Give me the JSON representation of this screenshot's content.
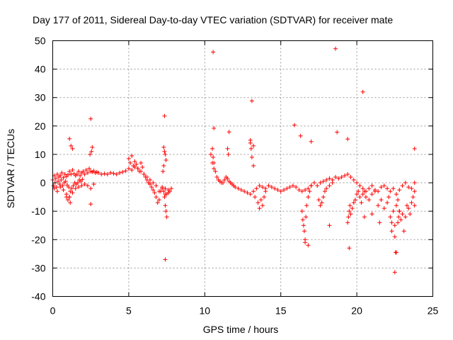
{
  "chart_data": {
    "type": "scatter",
    "title": "Day 177 of 2011, Sidereal Day-to-day VTEC variation (SDTVAR) for receiver mate",
    "xlabel": "GPS time / hours",
    "ylabel": "SDTVAR / TECUs",
    "xlim": [
      0,
      25
    ],
    "ylim": [
      -40,
      50
    ],
    "xticks": [
      0,
      5,
      10,
      15,
      20,
      25
    ],
    "yticks": [
      -40,
      -30,
      -20,
      -10,
      0,
      10,
      20,
      30,
      40,
      50
    ],
    "grid": true,
    "marker": "+",
    "series": [
      {
        "name": "SDTVAR",
        "color": "#ff0000",
        "x": [
          0.0,
          0.1,
          0.2,
          0.3,
          0.4,
          0.5,
          0.6,
          0.7,
          0.8,
          0.9,
          1.0,
          1.1,
          1.2,
          1.3,
          1.4,
          1.5,
          1.6,
          1.7,
          1.8,
          1.9,
          2.0,
          2.1,
          2.2,
          2.3,
          2.4,
          2.5,
          2.6,
          2.7,
          2.8,
          2.9,
          3.0,
          3.2,
          3.4,
          3.6,
          3.8,
          4.0,
          4.2,
          4.4,
          4.6,
          4.8,
          5.0,
          5.2,
          5.4,
          5.6,
          5.8,
          6.0,
          6.2,
          6.4,
          6.6,
          6.8,
          7.0,
          7.2,
          7.4,
          7.6,
          7.8,
          0.05,
          0.15,
          0.25,
          0.35,
          0.45,
          0.55,
          0.65,
          0.75,
          0.85,
          0.95,
          1.05,
          1.15,
          1.25,
          1.35,
          1.45,
          1.55,
          1.65,
          1.75,
          1.85,
          1.95,
          0.1,
          0.3,
          0.5,
          0.7,
          0.9,
          1.1,
          1.3,
          1.5,
          1.7,
          1.9,
          2.1,
          2.3,
          2.5,
          2.7,
          1.1,
          1.2,
          1.3,
          2.5,
          2.6,
          2.55,
          2.45,
          1.15,
          0.9,
          1.0,
          5.0,
          5.1,
          5.2,
          5.3,
          5.4,
          5.5,
          5.6,
          5.7,
          5.8,
          5.9,
          6.0,
          6.1,
          6.2,
          6.3,
          6.4,
          6.5,
          6.6,
          6.7,
          6.8,
          6.9,
          7.0,
          7.1,
          7.2,
          7.3,
          7.4,
          7.5,
          7.6,
          7.7,
          7.3,
          7.35,
          7.4,
          7.45,
          7.3,
          7.25,
          7.35,
          7.4,
          7.45,
          7.5,
          10.4,
          10.5,
          10.6,
          10.7,
          10.8,
          10.9,
          11.0,
          11.1,
          11.2,
          11.3,
          11.4,
          11.5,
          11.6,
          11.7,
          11.8,
          11.9,
          12.0,
          12.2,
          12.4,
          12.6,
          12.8,
          13.0,
          13.2,
          13.4,
          13.6,
          13.8,
          14.0,
          14.2,
          14.4,
          14.6,
          14.8,
          15.0,
          15.2,
          15.4,
          15.6,
          15.8,
          16.0,
          16.2,
          16.4,
          16.6,
          16.8,
          17.0,
          17.2,
          17.4,
          17.6,
          17.8,
          18.0,
          18.2,
          18.4,
          18.6,
          18.8,
          19.0,
          19.2,
          19.4,
          19.6,
          19.8,
          20.0,
          20.2,
          20.4,
          20.6,
          20.8,
          21.0,
          21.2,
          21.4,
          21.6,
          21.8,
          22.0,
          22.2,
          22.4,
          22.6,
          22.8,
          23.0,
          23.2,
          23.4,
          23.6,
          23.8,
          10.5,
          10.55,
          10.6,
          11.5,
          11.55,
          13.0,
          13.05,
          13.1,
          13.2,
          13.3,
          13.5,
          13.6,
          13.7,
          13.8,
          13.9,
          14.0,
          16.4,
          16.45,
          16.5,
          16.55,
          16.6,
          16.65,
          16.7,
          16.8,
          16.9,
          17.0,
          17.5,
          17.6,
          17.7,
          17.8,
          17.9,
          18.0,
          18.2,
          18.4,
          19.4,
          19.45,
          19.5,
          19.55,
          19.6,
          19.7,
          19.8,
          19.9,
          20.0,
          20.1,
          20.2,
          20.3,
          20.4,
          20.5,
          20.6,
          20.8,
          21.0,
          21.2,
          21.4,
          21.6,
          21.8,
          22.0,
          22.1,
          22.2,
          22.3,
          22.4,
          22.5,
          22.6,
          22.7,
          22.8,
          22.9,
          23.0,
          23.1,
          23.2,
          23.3,
          23.4,
          23.5,
          23.6,
          23.7,
          23.8,
          22.3,
          22.5,
          22.6,
          22.7,
          22.75,
          22.8,
          10.55,
          10.6,
          13.1,
          15.9,
          18.6,
          18.7,
          20.4,
          19.4,
          16.3,
          17.0,
          11.6,
          13.0,
          13.2,
          18.2,
          19.5,
          20.5,
          21.0,
          21.5,
          23.8,
          16.8,
          22.5,
          22.55,
          7.4,
          7.35,
          2.5,
          1.1,
          23.8,
          16.6
        ],
        "y": [
          1.0,
          2.5,
          1.5,
          3.0,
          2.0,
          2.5,
          3.5,
          1.8,
          3.0,
          2.2,
          2.8,
          4.0,
          3.0,
          4.5,
          3.2,
          2.5,
          3.0,
          4.0,
          2.5,
          3.5,
          4.0,
          3.0,
          4.5,
          3.5,
          5.0,
          4.0,
          3.8,
          4.2,
          3.5,
          3.8,
          3.5,
          3.0,
          3.2,
          3.0,
          3.5,
          3.3,
          3.0,
          3.5,
          3.8,
          4.2,
          5.0,
          4.5,
          5.5,
          5.0,
          4.0,
          3.0,
          2.0,
          1.0,
          0.0,
          -1.0,
          -3.0,
          -2.0,
          -4.0,
          -3.5,
          -2.0,
          -1.0,
          0.0,
          -1.5,
          0.5,
          -0.5,
          1.0,
          -1.0,
          0.0,
          0.5,
          -0.8,
          -1.5,
          -3.0,
          -2.0,
          -1.0,
          0.0,
          -0.5,
          0.0,
          1.0,
          0.5,
          1.2,
          -2.0,
          -3.0,
          -1.5,
          -2.5,
          -4.0,
          -5.0,
          -3.5,
          -2.0,
          -1.5,
          -1.0,
          -0.5,
          -1.0,
          -2.0,
          -0.5,
          15.5,
          13.0,
          12.0,
          22.5,
          12.5,
          11.0,
          10.0,
          -7.0,
          -5.0,
          -6.0,
          8.5,
          7.0,
          9.5,
          6.0,
          7.5,
          6.5,
          5.0,
          4.0,
          7.0,
          5.5,
          3.0,
          2.0,
          1.0,
          0.0,
          -0.5,
          -1.5,
          -2.5,
          -3.5,
          -5.0,
          -7.0,
          -6.0,
          -3.0,
          -1.5,
          -3.0,
          -2.0,
          -4.0,
          -2.5,
          -3.0,
          12.5,
          11.0,
          10.0,
          8.0,
          6.0,
          4.0,
          -5.0,
          -8.0,
          -10.0,
          -12.0,
          10.0,
          7.0,
          5.0,
          4.0,
          2.0,
          1.0,
          0.5,
          0.0,
          0.0,
          1.0,
          2.0,
          1.5,
          0.5,
          0.0,
          -0.5,
          -1.0,
          -1.5,
          -2.0,
          -2.5,
          -3.0,
          -3.5,
          -4.0,
          -3.0,
          -2.0,
          -1.0,
          -1.5,
          -2.0,
          -1.0,
          -1.5,
          -2.0,
          -2.5,
          -3.0,
          -2.5,
          -2.0,
          -1.5,
          -1.0,
          -1.5,
          -2.5,
          -3.0,
          -2.5,
          -2.0,
          -1.0,
          0.0,
          -1.0,
          0.0,
          0.5,
          1.0,
          1.5,
          1.0,
          2.0,
          1.5,
          2.0,
          2.5,
          3.0,
          2.0,
          1.0,
          0.0,
          -1.0,
          -2.0,
          -3.0,
          -2.0,
          -1.0,
          -2.5,
          -3.0,
          -1.5,
          -1.0,
          -2.0,
          -3.0,
          -2.0,
          -4.0,
          -2.5,
          -1.0,
          0.0,
          -1.5,
          -2.0,
          0.0,
          12.0,
          9.0,
          7.0,
          12.0,
          10.0,
          14.0,
          12.0,
          9.0,
          6.0,
          -5.0,
          -7.0,
          -9.0,
          -6.0,
          -8.0,
          -5.0,
          -3.0,
          -10.0,
          -13.0,
          -15.0,
          -17.0,
          -20.0,
          -12.0,
          -8.0,
          -5.0,
          -3.0,
          -1.0,
          -6.0,
          -8.0,
          -7.0,
          -5.0,
          -3.0,
          -2.0,
          -1.0,
          0.0,
          -14.0,
          -12.0,
          -10.0,
          -8.0,
          -11.0,
          -9.0,
          -7.0,
          -6.0,
          -4.0,
          -3.0,
          -5.0,
          -7.0,
          -4.0,
          -3.0,
          -5.0,
          -6.0,
          -4.0,
          -3.0,
          -8.0,
          -6.0,
          -9.0,
          -7.0,
          -5.0,
          -12.0,
          -14.0,
          -10.0,
          -15.0,
          -8.0,
          -6.0,
          -10.0,
          -13.0,
          -11.0,
          -17.0,
          -12.0,
          -8.0,
          -9.0,
          -11.0,
          -7.0,
          -5.0,
          -3.0,
          -17.0,
          -19.0,
          -24.5,
          -14.0,
          -12.0,
          -10.0,
          46.0,
          19.2,
          28.8,
          20.3,
          47.2,
          17.8,
          32.0,
          15.4,
          16.5,
          14.5,
          17.9,
          15.0,
          13.0,
          -15.0,
          -23.0,
          -12.0,
          -11.0,
          -14.0,
          12.0,
          -22.0,
          -31.5,
          -24.5,
          -27.0,
          23.5,
          -7.5,
          -5.0,
          -8.0,
          -21.0
        ]
      }
    ]
  }
}
